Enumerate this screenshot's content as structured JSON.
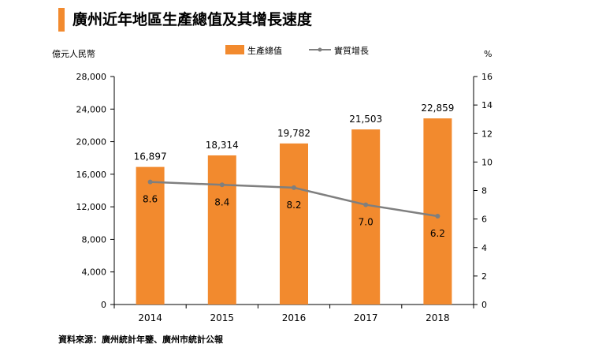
{
  "header": {
    "title": "廣州近年地區生產總值及其增長速度"
  },
  "source": "資料來源：廣州統計年鑒、廣州市統計公報",
  "colors": {
    "accent": "#f28a2e",
    "bar": "#f28a2e",
    "line": "#7f7f7f"
  },
  "chart_data": {
    "type": "bar",
    "categories": [
      "2014",
      "2015",
      "2016",
      "2017",
      "2018"
    ],
    "series": [
      {
        "name": "生產總值",
        "type": "bar",
        "axis": "left",
        "values": [
          16897,
          18314,
          19782,
          21503,
          22859
        ],
        "labels": [
          "16,897",
          "18,314",
          "19,782",
          "21,503",
          "22,859"
        ]
      },
      {
        "name": "實質增長",
        "type": "line",
        "axis": "right",
        "values": [
          8.6,
          8.4,
          8.2,
          7.0,
          6.2
        ],
        "labels": [
          "8.6",
          "8.4",
          "8.2",
          "7.0",
          "6.2"
        ]
      }
    ],
    "ylabel": "億元人民幣",
    "y2label": "%",
    "ylim": [
      0,
      28000
    ],
    "y2lim": [
      0,
      16
    ],
    "yticks": [
      "0",
      "4,000",
      "8,000",
      "12,000",
      "16,000",
      "20,000",
      "24,000",
      "28,000"
    ],
    "y2ticks": [
      "0",
      "2",
      "4",
      "6",
      "8",
      "10",
      "12",
      "14",
      "16"
    ],
    "legend": "top-center"
  }
}
